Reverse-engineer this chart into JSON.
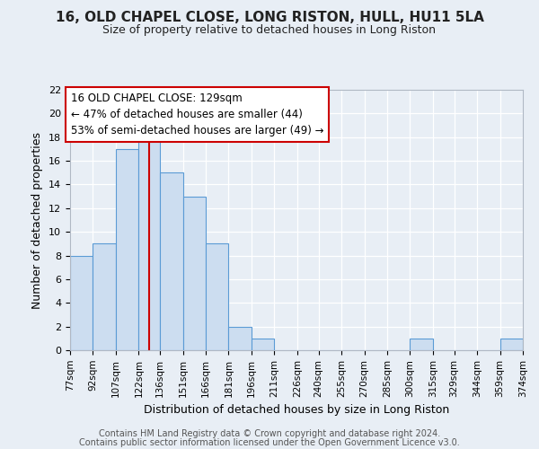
{
  "title": "16, OLD CHAPEL CLOSE, LONG RISTON, HULL, HU11 5LA",
  "subtitle": "Size of property relative to detached houses in Long Riston",
  "xlabel": "Distribution of detached houses by size in Long Riston",
  "ylabel": "Number of detached properties",
  "footer_line1": "Contains HM Land Registry data © Crown copyright and database right 2024.",
  "footer_line2": "Contains public sector information licensed under the Open Government Licence v3.0.",
  "bar_edges": [
    77,
    92,
    107,
    122,
    136,
    151,
    166,
    181,
    196,
    211,
    226,
    240,
    255,
    270,
    285,
    300,
    315,
    329,
    344,
    359,
    374
  ],
  "bar_heights": [
    8,
    9,
    17,
    18,
    15,
    13,
    9,
    2,
    1,
    0,
    0,
    0,
    0,
    0,
    0,
    1,
    0,
    0,
    0,
    1
  ],
  "tick_labels": [
    "77sqm",
    "92sqm",
    "107sqm",
    "122sqm",
    "136sqm",
    "151sqm",
    "166sqm",
    "181sqm",
    "196sqm",
    "211sqm",
    "226sqm",
    "240sqm",
    "255sqm",
    "270sqm",
    "285sqm",
    "300sqm",
    "315sqm",
    "329sqm",
    "344sqm",
    "359sqm",
    "374sqm"
  ],
  "bar_color": "#ccddf0",
  "bar_edge_color": "#5b9bd5",
  "property_value": 129,
  "vline_color": "#cc0000",
  "annotation_title": "16 OLD CHAPEL CLOSE: 129sqm",
  "annotation_line1": "← 47% of detached houses are smaller (44)",
  "annotation_line2": "53% of semi-detached houses are larger (49) →",
  "annotation_box_color": "#ffffff",
  "annotation_box_edge": "#cc0000",
  "ylim": [
    0,
    22
  ],
  "yticks": [
    0,
    2,
    4,
    6,
    8,
    10,
    12,
    14,
    16,
    18,
    20,
    22
  ],
  "bg_color": "#e8eef5",
  "plot_bg_color": "#e8eef5",
  "grid_color": "#ffffff",
  "title_fontsize": 11,
  "subtitle_fontsize": 9,
  "ylabel_fontsize": 9,
  "xlabel_fontsize": 9,
  "footer_fontsize": 7,
  "tick_fontsize": 7.5,
  "annot_fontsize": 8.5
}
